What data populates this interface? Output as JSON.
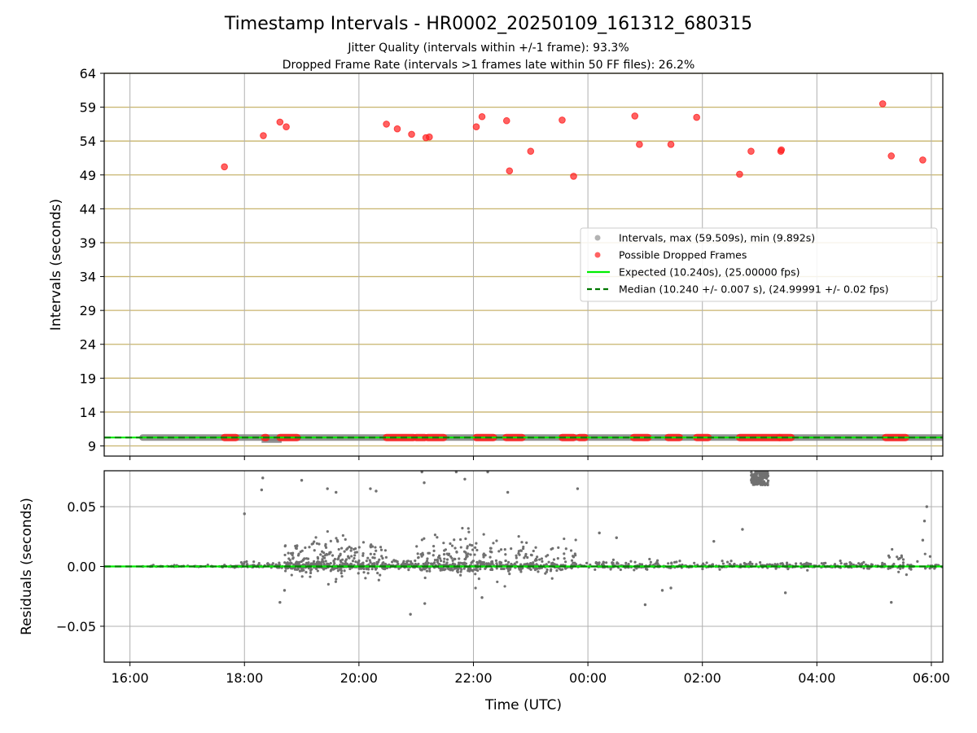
{
  "figure": {
    "title": "Timestamp Intervals - HR0002_20250109_161312_680315",
    "subtitle_1": "Jitter Quality (intervals within +/-1 frame): 93.3%",
    "subtitle_2": "Dropped Frame Rate (intervals >1 frames late within 50 FF files): 26.2%"
  },
  "colors": {
    "intervals": "#808080",
    "dropped": "#ff2020",
    "expected": "#00ee00",
    "median": "#007700",
    "grid_y_top": "#c8b46e",
    "grid": "#b0b0b0",
    "residual_points": "#707070"
  },
  "chart_data": [
    {
      "type": "scatter",
      "panel": "top",
      "xlabel": "",
      "ylabel": "Intervals (seconds)",
      "ylim": [
        7.5,
        64
      ],
      "yticks": [
        9,
        14,
        19,
        24,
        29,
        34,
        39,
        44,
        49,
        54,
        59,
        64
      ],
      "ytick_labels": [
        "9",
        "14",
        "19",
        "24",
        "29",
        "34",
        "39",
        "44",
        "49",
        "54",
        "59",
        "64"
      ],
      "xlim_hours": [
        15.55,
        30.2
      ],
      "xticks_hours": [
        16,
        18,
        20,
        22,
        24,
        26,
        28,
        30
      ],
      "grid": true,
      "legend_position": "center-right",
      "legend": [
        {
          "key": "intervals",
          "label": "Intervals, max (59.509s), min (9.892s)"
        },
        {
          "key": "dropped",
          "label": "Possible Dropped Frames"
        },
        {
          "key": "expected",
          "label": "Expected (10.240s), (25.00000 fps)"
        },
        {
          "key": "median",
          "label": "Median (10.240 +/- 0.007 s), (24.99991 +/- 0.02 fps)"
        }
      ],
      "expected": 10.24,
      "median": 10.24,
      "intervals_band": {
        "x_start": 16.22,
        "x_end": 30.2,
        "value": 10.24
      },
      "dropped_cluster_ranges": [
        [
          17.65,
          17.85
        ],
        [
          18.35,
          18.38
        ],
        [
          18.62,
          18.92
        ],
        [
          20.48,
          20.95
        ],
        [
          21.0,
          21.15
        ],
        [
          21.2,
          21.48
        ],
        [
          22.05,
          22.35
        ],
        [
          22.57,
          22.85
        ],
        [
          23.55,
          23.75
        ],
        [
          23.85,
          23.95
        ],
        [
          24.8,
          25.05
        ],
        [
          25.4,
          25.6
        ],
        [
          25.9,
          26.1
        ],
        [
          26.65,
          27.35
        ],
        [
          27.35,
          27.55
        ],
        [
          29.2,
          29.55
        ]
      ],
      "dropped_points": [
        {
          "x": 17.65,
          "y": 50.2
        },
        {
          "x": 18.33,
          "y": 54.8
        },
        {
          "x": 18.62,
          "y": 56.8
        },
        {
          "x": 18.73,
          "y": 56.1
        },
        {
          "x": 20.48,
          "y": 56.5
        },
        {
          "x": 20.67,
          "y": 55.8
        },
        {
          "x": 20.92,
          "y": 55.0
        },
        {
          "x": 21.17,
          "y": 54.5
        },
        {
          "x": 21.23,
          "y": 54.6
        },
        {
          "x": 22.05,
          "y": 56.1
        },
        {
          "x": 22.15,
          "y": 57.6
        },
        {
          "x": 22.58,
          "y": 57.0
        },
        {
          "x": 22.63,
          "y": 49.6
        },
        {
          "x": 23.0,
          "y": 52.5
        },
        {
          "x": 23.55,
          "y": 57.1
        },
        {
          "x": 23.75,
          "y": 48.8
        },
        {
          "x": 24.82,
          "y": 57.7
        },
        {
          "x": 24.9,
          "y": 53.5
        },
        {
          "x": 25.45,
          "y": 53.5
        },
        {
          "x": 25.9,
          "y": 57.5
        },
        {
          "x": 26.65,
          "y": 49.1
        },
        {
          "x": 26.85,
          "y": 52.5
        },
        {
          "x": 27.37,
          "y": 52.5
        },
        {
          "x": 27.38,
          "y": 52.7
        },
        {
          "x": 29.15,
          "y": 59.5
        },
        {
          "x": 29.3,
          "y": 51.8
        },
        {
          "x": 29.85,
          "y": 51.2
        }
      ]
    },
    {
      "type": "scatter",
      "panel": "bottom",
      "xlabel": "Time (UTC)",
      "ylabel": "Residuals (seconds)",
      "ylim": [
        -0.08,
        0.08
      ],
      "yticks": [
        -0.05,
        0.0,
        0.05
      ],
      "ytick_labels": [
        "−0.05",
        "0.00",
        "0.05"
      ],
      "xlim_hours": [
        15.55,
        30.2
      ],
      "xticks_hours": [
        16,
        18,
        20,
        22,
        24,
        26,
        28,
        30
      ],
      "xtick_labels": [
        "16:00",
        "18:00",
        "20:00",
        "22:00",
        "00:00",
        "02:00",
        "04:00",
        "06:00"
      ],
      "grid": true,
      "expected": 0.0,
      "median": 0.0,
      "residual_density": [
        {
          "x_start": 16.22,
          "x_end": 17.6,
          "spread": 0.002,
          "count": 40
        },
        {
          "x_start": 17.6,
          "x_end": 18.3,
          "spread": 0.006,
          "count": 60
        },
        {
          "x_start": 18.3,
          "x_end": 18.7,
          "spread": 0.01,
          "count": 30
        },
        {
          "x_start": 18.7,
          "x_end": 19.2,
          "spread": 0.03,
          "count": 130
        },
        {
          "x_start": 19.2,
          "x_end": 19.8,
          "spread": 0.035,
          "count": 160
        },
        {
          "x_start": 19.8,
          "x_end": 20.5,
          "spread": 0.03,
          "count": 150
        },
        {
          "x_start": 20.5,
          "x_end": 21.0,
          "spread": 0.01,
          "count": 80
        },
        {
          "x_start": 21.0,
          "x_end": 21.6,
          "spread": 0.03,
          "count": 120
        },
        {
          "x_start": 21.6,
          "x_end": 22.2,
          "spread": 0.045,
          "count": 130
        },
        {
          "x_start": 22.2,
          "x_end": 23.0,
          "spread": 0.04,
          "count": 120
        },
        {
          "x_start": 23.0,
          "x_end": 23.8,
          "spread": 0.03,
          "count": 100
        },
        {
          "x_start": 23.8,
          "x_end": 26.7,
          "spread": 0.008,
          "count": 220
        },
        {
          "x_start": 26.7,
          "x_end": 29.2,
          "spread": 0.006,
          "count": 220
        },
        {
          "x_start": 29.2,
          "x_end": 30.2,
          "spread": 0.02,
          "count": 60
        }
      ],
      "residual_cluster": {
        "x_start": 26.85,
        "x_end": 27.15,
        "y_low": 0.068,
        "y_high": 0.08,
        "count": 120
      },
      "residual_outliers": [
        {
          "x": 18.0,
          "y": 0.044
        },
        {
          "x": 18.3,
          "y": 0.064
        },
        {
          "x": 18.32,
          "y": 0.074
        },
        {
          "x": 18.62,
          "y": -0.03
        },
        {
          "x": 18.7,
          "y": -0.02
        },
        {
          "x": 19.0,
          "y": 0.072
        },
        {
          "x": 19.45,
          "y": 0.065
        },
        {
          "x": 19.6,
          "y": 0.062
        },
        {
          "x": 20.2,
          "y": 0.065
        },
        {
          "x": 20.3,
          "y": 0.063
        },
        {
          "x": 21.1,
          "y": 0.079
        },
        {
          "x": 21.14,
          "y": 0.07
        },
        {
          "x": 21.7,
          "y": 0.079
        },
        {
          "x": 21.85,
          "y": 0.073
        },
        {
          "x": 22.25,
          "y": 0.079
        },
        {
          "x": 20.9,
          "y": -0.04
        },
        {
          "x": 21.15,
          "y": -0.031
        },
        {
          "x": 22.15,
          "y": -0.026
        },
        {
          "x": 22.6,
          "y": 0.062
        },
        {
          "x": 23.82,
          "y": 0.065
        },
        {
          "x": 24.2,
          "y": 0.028
        },
        {
          "x": 24.5,
          "y": 0.024
        },
        {
          "x": 25.0,
          "y": -0.032
        },
        {
          "x": 25.3,
          "y": -0.02
        },
        {
          "x": 25.45,
          "y": -0.018
        },
        {
          "x": 26.2,
          "y": 0.021
        },
        {
          "x": 26.7,
          "y": 0.031
        },
        {
          "x": 27.45,
          "y": -0.022
        },
        {
          "x": 29.3,
          "y": -0.03
        },
        {
          "x": 29.88,
          "y": 0.038
        },
        {
          "x": 29.92,
          "y": 0.05
        },
        {
          "x": 29.85,
          "y": 0.022
        }
      ]
    }
  ]
}
